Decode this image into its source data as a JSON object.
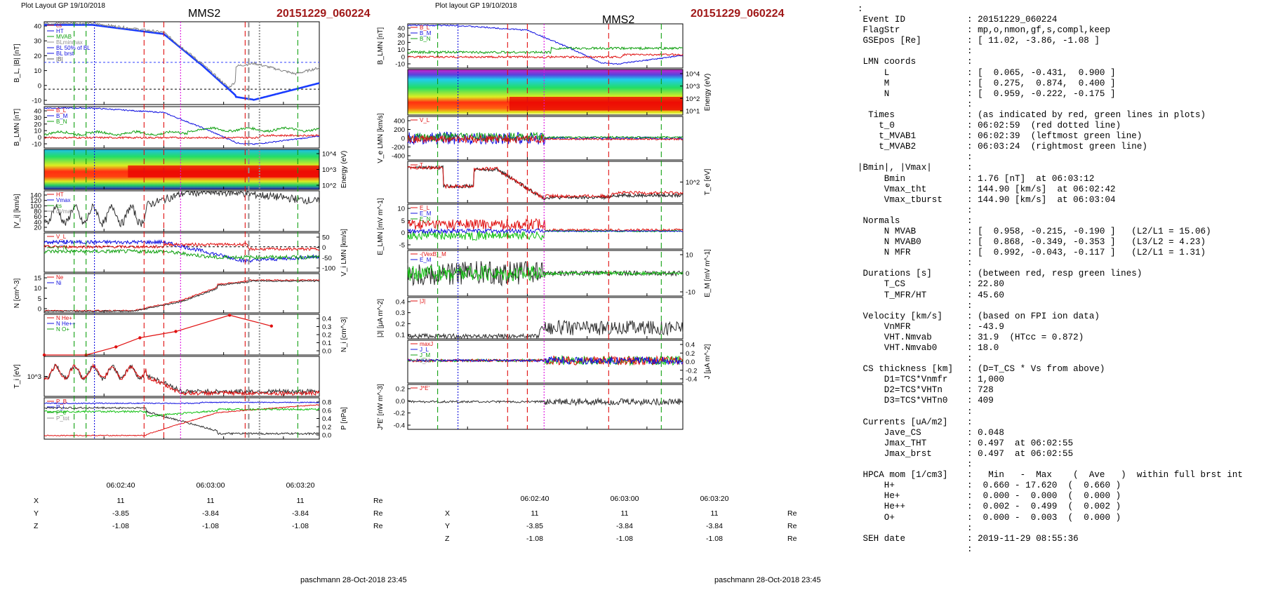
{
  "left_plot": {
    "header": "Plot Layout GP 19/10/2018",
    "spacecraft": "MMS2",
    "event": "20151229_060224",
    "footer": "paschmann 28-Oct-2018 23:45",
    "time_ticks": [
      "06:02:40",
      "06:03:00",
      "06:03:20"
    ],
    "ephemeris": {
      "rows": [
        {
          "label": "X",
          "values": [
            "11",
            "11",
            "11"
          ],
          "unit": "Re"
        },
        {
          "label": "Y",
          "values": [
            "-3.85",
            "-3.84",
            "-3.84"
          ],
          "unit": "Re"
        },
        {
          "label": "Z",
          "values": [
            "-1.08",
            "-1.08",
            "-1.08"
          ],
          "unit": "Re"
        }
      ]
    }
  },
  "right_plot": {
    "header": "Plot layout GP 19/10/2018",
    "spacecraft": "MMS2",
    "event": "20151229_060224",
    "footer": "paschmann 28-Oct-2018 23:45",
    "time_ticks": [
      "06:02:40",
      "06:03:00",
      "06:03:20"
    ],
    "ephemeris": {
      "rows": [
        {
          "label": "X",
          "values": [
            "11",
            "11",
            "11"
          ],
          "unit": "Re"
        },
        {
          "label": "Y",
          "values": [
            "-3.85",
            "-3.84",
            "-3.84"
          ],
          "unit": "Re"
        },
        {
          "label": "Z",
          "values": [
            "-1.08",
            "-1.08",
            "-1.08"
          ],
          "unit": "Re"
        }
      ]
    }
  },
  "colors": {
    "event": "#a01818",
    "red_line": "#e01010",
    "green_line": "#10a010",
    "blue_line": "#1010e0",
    "magenta_line": "#e010e0",
    "grey": "#909090"
  },
  "chart_data": [
    {
      "id": "left",
      "type": "line",
      "x_range_s": [
        -20,
        26
      ],
      "markers_s": [
        {
          "t": -15.0,
          "color": "green",
          "dash": "long"
        },
        {
          "t": -13.0,
          "color": "green",
          "dash": "long"
        },
        {
          "t": -11.6,
          "color": "blue",
          "dash": "dot"
        },
        {
          "t": -3.3,
          "color": "red",
          "dash": "long"
        },
        {
          "t": 0.0,
          "color": "red",
          "dash": "long"
        },
        {
          "t": 2.8,
          "color": "magenta",
          "dash": "dot"
        },
        {
          "t": 13.6,
          "color": "red",
          "dash": "long"
        },
        {
          "t": 14.2,
          "color": "grey",
          "dash": "long"
        },
        {
          "t": 16.0,
          "color": "grey",
          "dash": "dot"
        },
        {
          "t": 22.4,
          "color": "green",
          "dash": "long"
        }
      ],
      "panels": [
        {
          "name": "B",
          "ylabel": "B_L, |B| [nT]",
          "ylim": [
            -10,
            44
          ],
          "yticks": [
            "40",
            "30",
            "20",
            "10",
            "0",
            "-10"
          ],
          "label_side": "left",
          "legend": [
            "cs",
            "HT",
            "MVAB",
            "BLminmax",
            "BL 50% of BL",
            "BL brst",
            "|B|"
          ],
          "hlines": [
            {
              "y": 17.5,
              "color": "blue"
            },
            {
              "y": 0,
              "color": "black"
            }
          ]
        },
        {
          "name": "BLMN",
          "ylabel": "B_LMN [nT]",
          "ylim": [
            -12,
            44
          ],
          "yticks": [
            "40",
            "30",
            "20",
            "10",
            "0",
            "-10"
          ],
          "label_side": "left",
          "legend": [
            "B_L",
            "B_M",
            "B_N"
          ]
        },
        {
          "name": "spec",
          "ylabel": "Energy (eV)",
          "yticks": [
            "10^4",
            "10^3",
            "10^2"
          ],
          "label_side": "right",
          "kind": "spectrogram"
        },
        {
          "name": "Vi",
          "ylabel": "|V_i| [km/s]",
          "ylim": [
            20,
            145
          ],
          "yticks": [
            "140",
            "120",
            "100",
            "80",
            "60",
            "40",
            "20"
          ],
          "label_side": "left",
          "legend": [
            "HT",
            "Vmax",
            "cs",
            "dVmax"
          ]
        },
        {
          "name": "ViLMN",
          "ylabel": "V_i LMN [km/s]",
          "ylim": [
            -110,
            60
          ],
          "yticks": [
            "50",
            "0",
            "-50",
            "-100"
          ],
          "label_side": "right",
          "legend": [
            "V_L",
            "V_M",
            "V_N"
          ],
          "hlines": [
            {
              "y": 0,
              "color": "black"
            }
          ]
        },
        {
          "name": "N",
          "ylabel": "N [cm^-3]",
          "ylim": [
            0,
            18
          ],
          "yticks": [
            "15",
            "10",
            "5",
            "0"
          ],
          "label_side": "left",
          "legend": [
            "Ne",
            "Ni"
          ]
        },
        {
          "name": "Nminor",
          "ylabel": "N_i [cm^-3]",
          "ylim": [
            0,
            0.45
          ],
          "yticks": [
            "0.4",
            "0.3",
            "0.2",
            "0.1",
            "0.0"
          ],
          "label_side": "right",
          "legend": [
            "N He+",
            "N He++",
            "N O+"
          ],
          "he_pp_points": [
            [
              -20,
              0.0
            ],
            [
              -13,
              0.0
            ],
            [
              -8,
              0.09
            ],
            [
              -4,
              0.19
            ],
            [
              2,
              0.26
            ],
            [
              11,
              0.44
            ],
            [
              18,
              0.32
            ]
          ]
        },
        {
          "name": "Ti",
          "ylabel": "T_i [eV]",
          "yticks": [
            "10^3"
          ],
          "label_side": "left"
        },
        {
          "name": "P",
          "ylabel": "P [nPa]",
          "ylim": [
            0,
            0.9
          ],
          "yticks": [
            "0.8",
            "0.6",
            "0.4",
            "0.2",
            "0.0"
          ],
          "label_side": "right",
          "legend": [
            "P_B",
            "P_i",
            "P_e",
            "P_tot"
          ]
        }
      ]
    },
    {
      "id": "right",
      "type": "line",
      "x_range_s": [
        -20,
        26
      ],
      "markers_s": [
        {
          "t": -15.0,
          "color": "green",
          "dash": "long"
        },
        {
          "t": -11.6,
          "color": "blue",
          "dash": "dot"
        },
        {
          "t": -3.3,
          "color": "red",
          "dash": "long"
        },
        {
          "t": 0.0,
          "color": "red",
          "dash": "long"
        },
        {
          "t": 2.8,
          "color": "magenta",
          "dash": "dot"
        },
        {
          "t": 13.6,
          "color": "red",
          "dash": "long"
        },
        {
          "t": 22.4,
          "color": "green",
          "dash": "long"
        }
      ],
      "panels": [
        {
          "name": "BLMN",
          "ylabel": "B_LMN [nT]",
          "ylim": [
            -12,
            44
          ],
          "yticks": [
            "40",
            "30",
            "20",
            "10",
            "0",
            "-10"
          ],
          "label_side": "left",
          "legend": [
            "B_L",
            "B_M",
            "B_N"
          ]
        },
        {
          "name": "spec",
          "ylabel": "Energy (eV)",
          "yticks": [
            "10^4",
            "10^3",
            "10^2",
            "10^1"
          ],
          "label_side": "right",
          "kind": "spectrogram"
        },
        {
          "name": "VeLMN",
          "ylabel": "V_e LMN [km/s]",
          "ylim": [
            -450,
            450
          ],
          "yticks": [
            "400",
            "200",
            "0",
            "-200",
            "-400"
          ],
          "label_side": "left",
          "legend": [
            "V_L"
          ]
        },
        {
          "name": "Te",
          "ylabel": "T_e [eV]",
          "yticks": [
            "10^2"
          ],
          "label_side": "right",
          "legend": [
            "T"
          ]
        },
        {
          "name": "ELMN",
          "ylabel": "E_LMN [mV m^-1]",
          "ylim": [
            -8,
            12
          ],
          "yticks": [
            "10",
            "5",
            "0",
            "-5"
          ],
          "label_side": "left",
          "legend": [
            "E_L",
            "E_M",
            "E_N"
          ]
        },
        {
          "name": "EM",
          "ylabel": "E_M [mV m^-1]",
          "ylim": [
            -15,
            15
          ],
          "yticks": [
            "10",
            "0",
            "-10"
          ],
          "label_side": "right",
          "legend": [
            "-(VexB)_M",
            "E_M"
          ]
        },
        {
          "name": "J",
          "ylabel": "|J| [μA m^-2]",
          "ylim": [
            0,
            0.45
          ],
          "yticks": [
            "0.4",
            "0.3",
            "0.2",
            "0.1"
          ],
          "label_side": "left",
          "legend": [
            "|J|"
          ]
        },
        {
          "name": "JLMN",
          "ylabel": "J [μA m^-2]",
          "ylim": [
            -0.5,
            0.45
          ],
          "yticks": [
            "0.4",
            "0.2",
            "0.0",
            "-0.2",
            "-0.4"
          ],
          "label_side": "right",
          "legend": [
            "maxJ",
            "J_L",
            "J_M",
            "J_N"
          ]
        },
        {
          "name": "JE",
          "ylabel": "J*E' [nW m^-3]",
          "ylim": [
            -0.4,
            0.25
          ],
          "yticks": [
            "0.2",
            "0.0",
            "-0.2",
            "-0.4"
          ],
          "label_side": "left",
          "legend": [
            "J*E'"
          ]
        }
      ]
    }
  ],
  "info_panel": {
    "rows": [
      {
        "k": ":",
        "v": ""
      },
      {
        "k": " Event ID",
        "v": ": 20151229_060224"
      },
      {
        "k": " FlagStr",
        "v": ": mp,o,nmon,gf,s,compl,keep"
      },
      {
        "k": " GSEpos [Re]",
        "v": ": [ 11.02, -3.86, -1.08 ]"
      },
      {
        "k": "",
        "v": ":"
      },
      {
        "k": " LMN coords",
        "v": ":"
      },
      {
        "k": "     L",
        "v": ": [  0.065, -0.431,  0.900 ]"
      },
      {
        "k": "     M",
        "v": ": [  0.275,  0.874,  0.400 ]"
      },
      {
        "k": "     N",
        "v": ": [  0.959, -0.222, -0.175 ]"
      },
      {
        "k": "",
        "v": ":"
      },
      {
        "k": "  Times",
        "v": ": (as indicated by red, green lines in plots)"
      },
      {
        "k": "    t_0",
        "v": ": 06:02:59  (red dotted line)"
      },
      {
        "k": "    t_MVAB1",
        "v": ": 06:02:39  (leftmost green line)"
      },
      {
        "k": "    t_MVAB2",
        "v": ": 06:03:24  (rightmost green line)"
      },
      {
        "k": "",
        "v": ":"
      },
      {
        "k": "|Bmin|, |Vmax|",
        "v": ":"
      },
      {
        "k": "     Bmin",
        "v": ": 1.76 [nT]  at 06:03:12"
      },
      {
        "k": "     Vmax_tht",
        "v": ": 144.90 [km/s]  at 06:02:42"
      },
      {
        "k": "     Vmax_tburst",
        "v": ": 144.90 [km/s]  at 06:03:04"
      },
      {
        "k": "",
        "v": ":"
      },
      {
        "k": " Normals",
        "v": ":"
      },
      {
        "k": "     N MVAB",
        "v": ": [  0.958, -0.215, -0.190 ]   (L2/L1 = 15.06)"
      },
      {
        "k": "     N MVAB0",
        "v": ": [  0.868, -0.349, -0.353 ]   (L3/L2 = 4.23)"
      },
      {
        "k": "     N MFR",
        "v": ": [  0.992, -0.043, -0.117 ]   (L2/L1 = 1.31)"
      },
      {
        "k": "",
        "v": ":"
      },
      {
        "k": " Durations [s]",
        "v": ": (between red, resp green lines)"
      },
      {
        "k": "     T_CS",
        "v": ": 22.80"
      },
      {
        "k": "     T_MFR/HT",
        "v": ": 45.60"
      },
      {
        "k": "",
        "v": ":"
      },
      {
        "k": " Velocity [km/s]",
        "v": ": (based on FPI ion data)"
      },
      {
        "k": "     VnMFR",
        "v": ": -43.9"
      },
      {
        "k": "     VHT.Nmvab",
        "v": ": 31.9  (HTcc = 0.872)"
      },
      {
        "k": "     VHT.Nmvab0",
        "v": ": 18.0"
      },
      {
        "k": "",
        "v": ":"
      },
      {
        "k": " CS thickness [km]",
        "v": ": (D=T_CS * Vs from above)"
      },
      {
        "k": "     D1=TCS*Vnmfr",
        "v": ": 1,000"
      },
      {
        "k": "     D2=TCS*VHTn",
        "v": ": 728"
      },
      {
        "k": "     D3=TCS*VHTn0",
        "v": ": 409"
      },
      {
        "k": "",
        "v": ":"
      },
      {
        "k": " Currents [uA/m2]",
        "v": ":"
      },
      {
        "k": "     Jave_CS",
        "v": ": 0.048"
      },
      {
        "k": "     Jmax_THT",
        "v": ": 0.497  at 06:02:55"
      },
      {
        "k": "     Jmax_brst",
        "v": ": 0.497  at 06:02:55"
      },
      {
        "k": "",
        "v": ":"
      },
      {
        "k": " HPCA mom [1/cm3]",
        "v": ":   Min   -  Max    (  Ave   )  within full brst int"
      },
      {
        "k": "     H+",
        "v": ":  0.660 - 17.620  (  0.660 )"
      },
      {
        "k": "     He+",
        "v": ":  0.000 -  0.000  (  0.000 )"
      },
      {
        "k": "     He++",
        "v": ":  0.002 -  0.499  (  0.002 )"
      },
      {
        "k": "     O+",
        "v": ":  0.000 -  0.003  (  0.000 )"
      },
      {
        "k": "",
        "v": ":"
      },
      {
        "k": " SEH date",
        "v": ": 2019-11-29 08:55:36"
      },
      {
        "k": "",
        "v": ":"
      }
    ]
  }
}
